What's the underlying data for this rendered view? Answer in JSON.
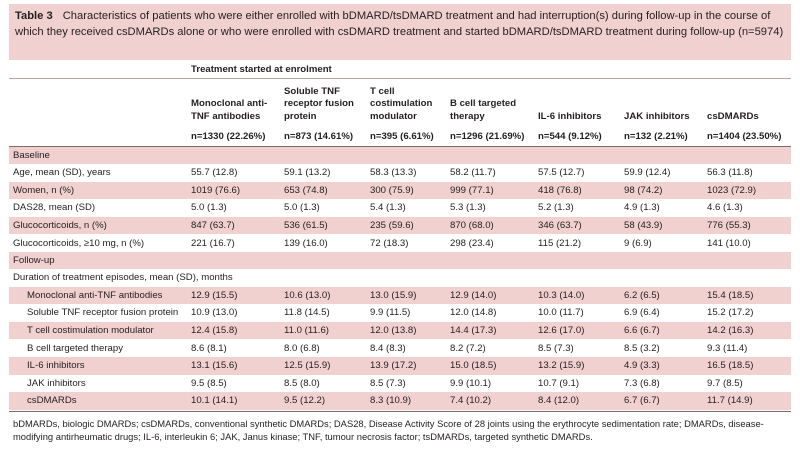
{
  "caption": {
    "label": "Table 3",
    "text": "Characteristics of patients who were either enrolled with bDMARD/tsDMARD treatment and had interruption(s) during follow-up in the course of which they received csDMARDs alone or who were enrolled with csDMARD treatment and started bDMARD/tsDMARD treatment during follow-up (n=5974)"
  },
  "group_header": "Treatment started at enrolment",
  "columns": [
    "Monoclonal anti-TNF antibodies",
    "Soluble TNF receptor fusion protein",
    "T cell costimulation modulator",
    "B cell targeted therapy",
    "IL-6 inhibitors",
    "JAK inhibitors",
    "csDMARDs"
  ],
  "n_row": [
    "n=1330 (22.26%)",
    "n=873 (14.61%)",
    "n=395 (6.61%)",
    "n=1296 (21.69%)",
    "n=544 (9.12%)",
    "n=132 (2.21%)",
    "n=1404 (23.50%)"
  ],
  "sections": {
    "baseline": "Baseline",
    "followup": "Follow-up",
    "duration_label": "Duration of treatment episodes, mean (SD), months"
  },
  "baseline_rows": [
    {
      "label": "Age, mean (SD), years",
      "values": [
        "55.7 (12.8)",
        "59.1 (13.2)",
        "58.3 (13.3)",
        "58.2 (11.7)",
        "57.5 (12.7)",
        "59.9 (12.4)",
        "56.3 (11.8)"
      ]
    },
    {
      "label": "Women, n (%)",
      "values": [
        "1019 (76.6)",
        "653 (74.8)",
        "300 (75.9)",
        "999 (77.1)",
        "418 (76.8)",
        "98 (74.2)",
        "1023 (72.9)"
      ]
    },
    {
      "label": "DAS28, mean (SD)",
      "values": [
        "5.0 (1.3)",
        "5.0 (1.3)",
        "5.4 (1.3)",
        "5.3 (1.3)",
        "5.2 (1.3)",
        "4.9 (1.3)",
        "4.6 (1.3)"
      ]
    },
    {
      "label": "Glucocorticoids, n (%)",
      "values": [
        "847 (63.7)",
        "536 (61.5)",
        "235 (59.6)",
        "870 (68.0)",
        "346 (63.7)",
        "58 (43.9)",
        "776 (55.3)"
      ]
    },
    {
      "label": "Glucocorticoids, ≥10 mg, n (%)",
      "values": [
        "221 (16.7)",
        "139 (16.0)",
        "72 (18.3)",
        "298 (23.4)",
        "115 (21.2)",
        "9 (6.9)",
        "141 (10.0)"
      ]
    }
  ],
  "duration_rows": [
    {
      "label": "Monoclonal anti-TNF antibodies",
      "values": [
        "12.9 (15.5)",
        "10.6 (13.0)",
        "13.0 (15.9)",
        "12.9 (14.0)",
        "10.3 (14.0)",
        "6.2 (6.5)",
        "15.4 (18.5)"
      ]
    },
    {
      "label": "Soluble TNF receptor fusion protein",
      "values": [
        "10.9 (13.0)",
        "11.8 (14.5)",
        "9.9 (11.5)",
        "12.0 (14.8)",
        "10.0 (11.7)",
        "6.9 (6.4)",
        "15.2 (17.2)"
      ]
    },
    {
      "label": "T cell costimulation modulator",
      "values": [
        "12.4 (15.8)",
        "11.0 (11.6)",
        "12.0 (13.8)",
        "14.4 (17.3)",
        "12.6 (17.0)",
        "6.6 (6.7)",
        "14.2 (16.3)"
      ]
    },
    {
      "label": "B cell targeted therapy",
      "values": [
        "8.6 (8.1)",
        "8.0 (6.8)",
        "8.4 (8.3)",
        "8.2 (7.2)",
        "8.5 (7.3)",
        "8.5 (3.2)",
        "9.3 (11.4)"
      ]
    },
    {
      "label": "IL-6 inhibitors",
      "values": [
        "13.1 (15.6)",
        "12.5 (15.9)",
        "13.9 (17.2)",
        "15.0 (18.5)",
        "13.2 (15.9)",
        "4.9 (3.3)",
        "16.5 (18.5)"
      ]
    },
    {
      "label": "JAK inhibitors",
      "values": [
        "9.5 (8.5)",
        "8.5 (8.0)",
        "8.5 (7.3)",
        "9.9 (10.1)",
        "10.7 (9.1)",
        "7.3 (6.8)",
        "9.7 (8.5)"
      ]
    },
    {
      "label": "csDMARDs",
      "values": [
        "10.1 (14.1)",
        "9.5 (12.2)",
        "8.3 (10.9)",
        "7.4 (10.2)",
        "8.4 (12.0)",
        "6.7 (6.7)",
        "11.7 (14.9)"
      ]
    }
  ],
  "footnote": "bDMARDs, biologic DMARDs; csDMARDs, conventional synthetic DMARDs; DAS28, Disease Activity Score of 28 joints using the erythrocyte sedimentation rate; DMARDs, disease-modifying antirheumatic drugs; IL-6, interleukin 6; JAK, Janus kinase; TNF, tumour necrosis factor; tsDMARDs, targeted synthetic DMARDs.",
  "colors": {
    "shade": "#f1d0d0",
    "text": "#231f20"
  }
}
